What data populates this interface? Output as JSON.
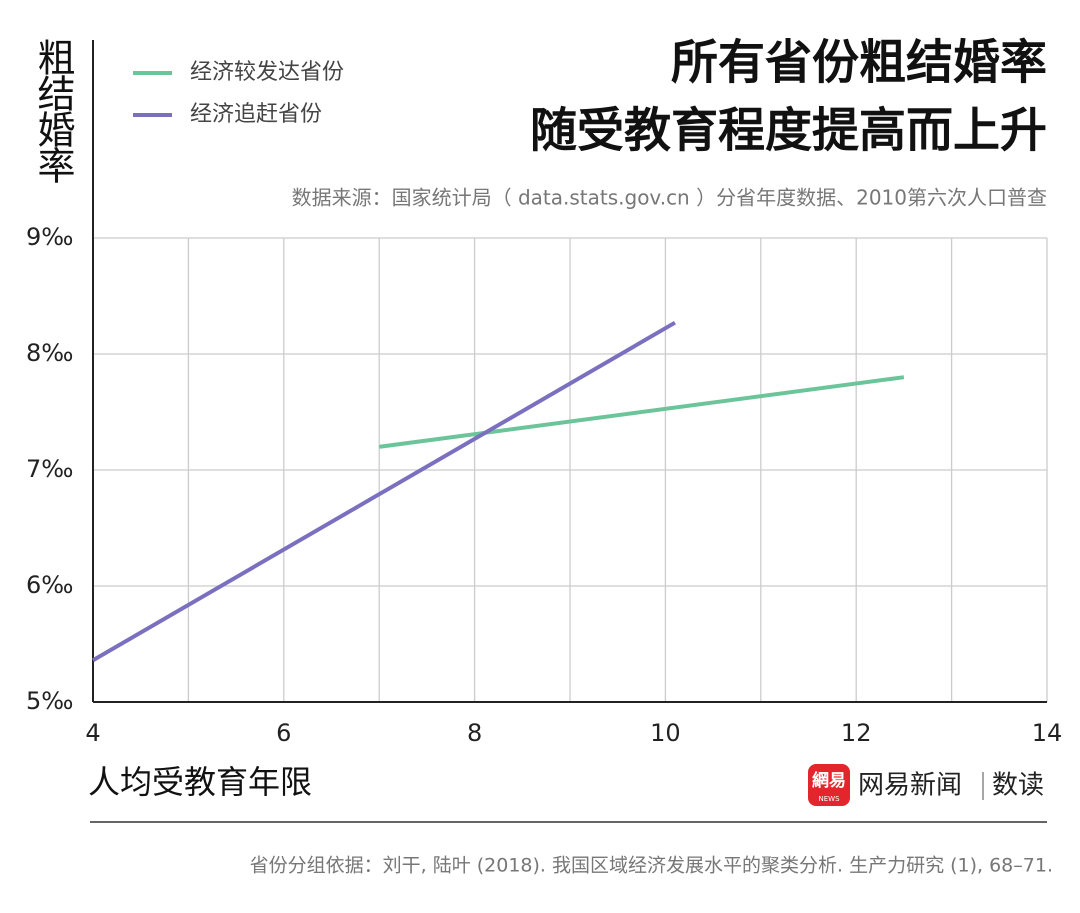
{
  "chart_data": {
    "type": "line",
    "title": [
      "所有省份粗结婚率",
      "随受教育程度提高而上升"
    ],
    "source": "数据来源：国家统计局（ data.stats.gov.cn ）分省年度数据、2010第六次人口普查",
    "ylabel": "粗结婚率",
    "xlabel": "人均受教育年限",
    "footnote": "省份分组依据：刘干, 陆叶 (2018). 我国区域经济发展水平的聚类分析. 生产力研究 (1), 68–71.",
    "logo": {
      "badge": "網易",
      "badge_sub": "NEWS",
      "brand": "网易新闻",
      "column": "数读"
    },
    "series": [
      {
        "name": "经济较发达省份",
        "color": "#6cc59a",
        "x": [
          7,
          12.5
        ],
        "values": [
          7.2,
          7.8
        ]
      },
      {
        "name": "经济追赶省份",
        "color": "#7b6fbf",
        "x": [
          4,
          10.1
        ],
        "values": [
          5.36,
          8.27
        ]
      }
    ],
    "xlim": [
      4,
      14
    ],
    "xticks": [
      4,
      6,
      8,
      10,
      12,
      14
    ],
    "minor_xticks": [
      5,
      7,
      9,
      11,
      13
    ],
    "ylim": [
      5,
      9
    ],
    "yticks": [
      {
        "value": 5,
        "label": "5‰"
      },
      {
        "value": 6,
        "label": "6‰"
      },
      {
        "value": 7,
        "label": "7‰"
      },
      {
        "value": 8,
        "label": "8‰"
      },
      {
        "value": 9,
        "label": "9‰"
      }
    ],
    "grid": true,
    "legend": "top-left"
  }
}
